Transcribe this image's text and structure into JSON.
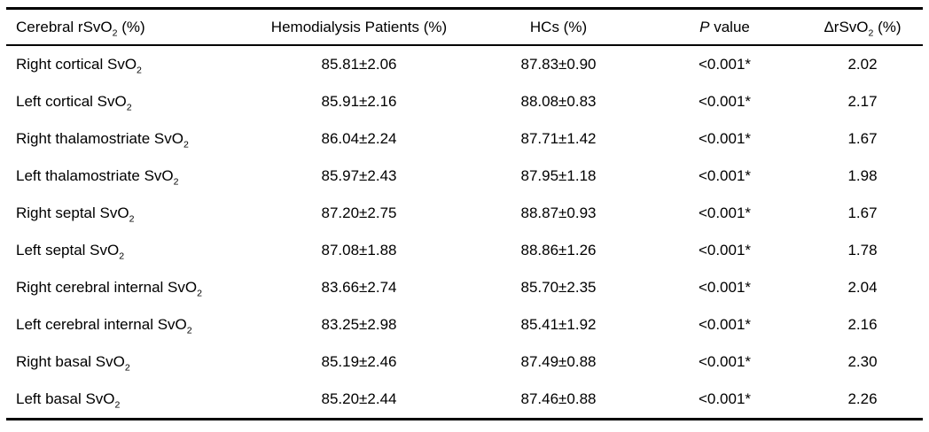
{
  "table": {
    "headers": {
      "col1": {
        "main": "Cerebral rSvO",
        "sub": "2",
        "suffix": " (%)"
      },
      "col2": "Hemodialysis Patients (%)",
      "col3": "HCs (%)",
      "col4": {
        "italic": "P",
        "rest": " value"
      },
      "col5": {
        "main": "ΔrSvO",
        "sub": "2",
        "suffix": " (%)"
      }
    },
    "rows": [
      {
        "label": "Right cortical SvO",
        "sub": "2",
        "patients": "85.81±2.06",
        "hcs": "87.83±0.90",
        "p_value": "<0.001*",
        "delta": "2.02"
      },
      {
        "label": "Left cortical SvO",
        "sub": "2",
        "patients": "85.91±2.16",
        "hcs": "88.08±0.83",
        "p_value": "<0.001*",
        "delta": "2.17"
      },
      {
        "label": "Right thalamostriate SvO",
        "sub": "2",
        "patients": "86.04±2.24",
        "hcs": "87.71±1.42",
        "p_value": "<0.001*",
        "delta": "1.67"
      },
      {
        "label": "Left thalamostriate SvO",
        "sub": "2",
        "patients": "85.97±2.43",
        "hcs": "87.95±1.18",
        "p_value": "<0.001*",
        "delta": "1.98"
      },
      {
        "label": "Right septal SvO",
        "sub": "2",
        "patients": "87.20±2.75",
        "hcs": "88.87±0.93",
        "p_value": "<0.001*",
        "delta": "1.67"
      },
      {
        "label": "Left septal SvO",
        "sub": "2",
        "patients": "87.08±1.88",
        "hcs": "88.86±1.26",
        "p_value": "<0.001*",
        "delta": "1.78"
      },
      {
        "label": "Right cerebral internal SvO",
        "sub": "2",
        "patients": "83.66±2.74",
        "hcs": "85.70±2.35",
        "p_value": "<0.001*",
        "delta": "2.04"
      },
      {
        "label": "Left cerebral internal SvO",
        "sub": "2",
        "patients": "83.25±2.98",
        "hcs": "85.41±1.92",
        "p_value": "<0.001*",
        "delta": "2.16"
      },
      {
        "label": "Right basal SvO",
        "sub": "2",
        "patients": "85.19±2.46",
        "hcs": "87.49±0.88",
        "p_value": "<0.001*",
        "delta": "2.30"
      },
      {
        "label": "Left basal SvO",
        "sub": "2",
        "patients": "85.20±2.44",
        "hcs": "87.46±0.88",
        "p_value": "<0.001*",
        "delta": "2.26"
      }
    ]
  },
  "colors": {
    "text": "#000000",
    "background": "#ffffff",
    "rule": "#000000"
  }
}
